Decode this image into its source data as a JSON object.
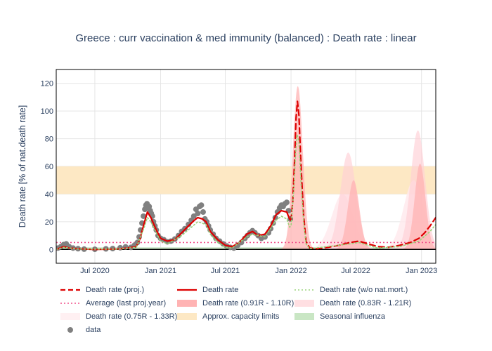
{
  "chart_data": {
    "type": "line",
    "title": "Greece : curr vaccination & med immunity (balanced) : Death rate : linear",
    "ylabel": "Death rate [% of nat.death rate]",
    "xlabel": "",
    "x_ticks": [
      "Jul 2020",
      "Jan 2021",
      "Jul 2021",
      "Jan 2022",
      "Jul 2022",
      "Jan 2023"
    ],
    "x_range": [
      "2020-03-15",
      "2023-02-10"
    ],
    "y_ticks": [
      0,
      20,
      40,
      60,
      80,
      100,
      120
    ],
    "ylim": [
      -10,
      130
    ],
    "grid": true,
    "legend_position": "bottom",
    "shaded_bands": [
      {
        "name": "Approx. capacity limits",
        "y0": 40,
        "y1": 60,
        "color": "#fde8c4"
      },
      {
        "name": "Seasonal influenza",
        "y0": 0,
        "y1": 1.5,
        "color": "#c9e6c4"
      }
    ],
    "average_line": {
      "name": "Average (last proj.year)",
      "y": 5,
      "color": "#f0508a"
    },
    "series": [
      {
        "name": "Death rate",
        "color": "#dd0000",
        "style": "solid",
        "points": [
          [
            "2020-03-15",
            0
          ],
          [
            "2020-04-05",
            2
          ],
          [
            "2020-04-20",
            1
          ],
          [
            "2020-05-15",
            0.5
          ],
          [
            "2020-07-01",
            0
          ],
          [
            "2020-09-01",
            0.3
          ],
          [
            "2020-10-01",
            1
          ],
          [
            "2020-10-25",
            2
          ],
          [
            "2020-11-05",
            8
          ],
          [
            "2020-11-15",
            18
          ],
          [
            "2020-11-25",
            27
          ],
          [
            "2020-12-05",
            23
          ],
          [
            "2020-12-20",
            14
          ],
          [
            "2021-01-01",
            8
          ],
          [
            "2021-01-20",
            6
          ],
          [
            "2021-02-10",
            7
          ],
          [
            "2021-03-01",
            12
          ],
          [
            "2021-03-20",
            17
          ],
          [
            "2021-04-05",
            21
          ],
          [
            "2021-04-15",
            23
          ],
          [
            "2021-04-28",
            22
          ],
          [
            "2021-05-08",
            20
          ],
          [
            "2021-05-20",
            13
          ],
          [
            "2021-06-10",
            7
          ],
          [
            "2021-07-01",
            3
          ],
          [
            "2021-07-20",
            2
          ],
          [
            "2021-08-10",
            5
          ],
          [
            "2021-08-30",
            11
          ],
          [
            "2021-09-15",
            13
          ],
          [
            "2021-10-01",
            10
          ],
          [
            "2021-10-20",
            11
          ],
          [
            "2021-11-05",
            17
          ],
          [
            "2021-11-20",
            25
          ],
          [
            "2021-12-05",
            28
          ],
          [
            "2021-12-20",
            27
          ],
          [
            "2021-12-28",
            22
          ],
          [
            "2022-01-01",
            21
          ]
        ]
      },
      {
        "name": "Death rate (proj.)",
        "color": "#dd0000",
        "style": "dash",
        "points": [
          [
            "2022-01-01",
            21
          ],
          [
            "2022-01-06",
            35
          ],
          [
            "2022-01-11",
            65
          ],
          [
            "2022-01-15",
            95
          ],
          [
            "2022-01-19",
            107
          ],
          [
            "2022-01-23",
            97
          ],
          [
            "2022-01-29",
            60
          ],
          [
            "2022-02-05",
            25
          ],
          [
            "2022-02-12",
            6
          ],
          [
            "2022-02-22",
            1
          ],
          [
            "2022-03-15",
            0.5
          ],
          [
            "2022-04-15",
            1.5
          ],
          [
            "2022-05-15",
            3
          ],
          [
            "2022-06-15",
            5
          ],
          [
            "2022-07-10",
            6
          ],
          [
            "2022-08-05",
            4
          ],
          [
            "2022-09-01",
            2
          ],
          [
            "2022-10-01",
            1.5
          ],
          [
            "2022-11-01",
            3
          ],
          [
            "2022-12-01",
            5
          ],
          [
            "2022-12-25",
            8
          ],
          [
            "2023-01-10",
            12
          ],
          [
            "2023-01-25",
            17
          ],
          [
            "2023-02-10",
            23
          ]
        ]
      },
      {
        "name": "Death rate (w/o nat.mort.)",
        "color": "#9ad37a",
        "style": "dot",
        "points": [
          [
            "2020-03-15",
            0
          ],
          [
            "2020-04-05",
            1.5
          ],
          [
            "2020-05-15",
            0.3
          ],
          [
            "2020-09-01",
            0.2
          ],
          [
            "2020-10-25",
            1.5
          ],
          [
            "2020-11-15",
            15
          ],
          [
            "2020-11-25",
            23
          ],
          [
            "2020-12-05",
            20
          ],
          [
            "2020-12-20",
            12
          ],
          [
            "2021-01-01",
            6
          ],
          [
            "2021-01-20",
            4
          ],
          [
            "2021-03-01",
            10
          ],
          [
            "2021-04-15",
            20
          ],
          [
            "2021-05-08",
            18
          ],
          [
            "2021-05-20",
            11
          ],
          [
            "2021-06-10",
            5
          ],
          [
            "2021-07-01",
            1.5
          ],
          [
            "2021-07-20",
            1
          ],
          [
            "2021-08-30",
            9
          ],
          [
            "2021-09-15",
            11
          ],
          [
            "2021-10-20",
            9
          ],
          [
            "2021-11-20",
            21
          ],
          [
            "2021-12-05",
            24
          ],
          [
            "2021-12-20",
            22
          ],
          [
            "2021-12-28",
            16
          ],
          [
            "2022-01-01",
            17
          ],
          [
            "2022-01-08",
            40
          ],
          [
            "2022-01-14",
            70
          ],
          [
            "2022-01-18",
            83
          ],
          [
            "2022-01-23",
            78
          ],
          [
            "2022-01-29",
            48
          ],
          [
            "2022-02-05",
            20
          ],
          [
            "2022-02-12",
            4
          ],
          [
            "2022-02-22",
            0.5
          ],
          [
            "2022-06-15",
            4
          ],
          [
            "2022-07-10",
            5
          ],
          [
            "2022-08-05",
            3
          ],
          [
            "2022-09-01",
            1
          ],
          [
            "2022-11-01",
            2
          ],
          [
            "2022-12-25",
            6
          ],
          [
            "2023-01-25",
            13
          ],
          [
            "2023-02-10",
            18
          ]
        ]
      }
    ],
    "uncertainty_bands": [
      {
        "name": "Death rate (0.91R - 1.10R)",
        "color": "#ffb3b3",
        "opacity": 0.75,
        "waves": [
          [
            "2022-01-20",
            118,
            14
          ],
          [
            "2022-06-25",
            50,
            16
          ],
          [
            "2022-12-28",
            62,
            15
          ]
        ]
      },
      {
        "name": "Death rate (0.83R - 1.21R)",
        "color": "#ffcfd5",
        "opacity": 0.65,
        "waves": [
          [
            "2022-06-10",
            70,
            22
          ],
          [
            "2022-12-22",
            86,
            20
          ]
        ]
      },
      {
        "name": "Death rate (0.75R - 1.33R)",
        "color": "#ffe9ec",
        "opacity": 0.8,
        "waves": [
          [
            "2022-05-25",
            40,
            30
          ],
          [
            "2022-12-10",
            50,
            28
          ]
        ]
      }
    ],
    "scatter": {
      "name": "data",
      "color": "#808080",
      "points": [
        [
          "2020-03-20",
          1
        ],
        [
          "2020-03-28",
          2
        ],
        [
          "2020-04-05",
          3.5
        ],
        [
          "2020-04-12",
          4
        ],
        [
          "2020-04-20",
          2
        ],
        [
          "2020-05-01",
          1
        ],
        [
          "2020-05-15",
          0.5
        ],
        [
          "2020-06-01",
          0.2
        ],
        [
          "2020-07-01",
          0.1
        ],
        [
          "2020-08-01",
          0.4
        ],
        [
          "2020-08-20",
          0.6
        ],
        [
          "2020-09-10",
          1.2
        ],
        [
          "2020-09-25",
          1.8
        ],
        [
          "2020-10-10",
          1.5
        ],
        [
          "2020-10-20",
          3
        ],
        [
          "2020-10-28",
          5
        ],
        [
          "2020-11-02",
          9
        ],
        [
          "2020-11-06",
          14
        ],
        [
          "2020-11-10",
          19
        ],
        [
          "2020-11-14",
          24
        ],
        [
          "2020-11-18",
          29
        ],
        [
          "2020-11-21",
          32
        ],
        [
          "2020-11-24",
          33
        ],
        [
          "2020-11-27",
          30
        ],
        [
          "2020-11-30",
          31
        ],
        [
          "2020-12-03",
          28
        ],
        [
          "2020-12-06",
          26
        ],
        [
          "2020-12-09",
          24
        ],
        [
          "2020-12-12",
          20
        ],
        [
          "2020-12-16",
          17
        ],
        [
          "2020-12-20",
          14
        ],
        [
          "2020-12-25",
          10
        ],
        [
          "2021-01-01",
          8
        ],
        [
          "2021-01-10",
          7
        ],
        [
          "2021-01-20",
          5.5
        ],
        [
          "2021-01-30",
          6
        ],
        [
          "2021-02-10",
          7.5
        ],
        [
          "2021-02-20",
          10
        ],
        [
          "2021-03-01",
          13
        ],
        [
          "2021-03-10",
          15
        ],
        [
          "2021-03-20",
          18
        ],
        [
          "2021-03-28",
          21
        ],
        [
          "2021-04-04",
          24
        ],
        [
          "2021-04-10",
          29
        ],
        [
          "2021-04-15",
          26
        ],
        [
          "2021-04-20",
          31
        ],
        [
          "2021-04-25",
          32
        ],
        [
          "2021-04-30",
          27
        ],
        [
          "2021-05-05",
          22
        ],
        [
          "2021-05-10",
          20
        ],
        [
          "2021-05-15",
          17
        ],
        [
          "2021-05-20",
          14
        ],
        [
          "2021-05-28",
          11
        ],
        [
          "2021-06-05",
          8
        ],
        [
          "2021-06-15",
          6
        ],
        [
          "2021-06-25",
          4
        ],
        [
          "2021-07-05",
          2.5
        ],
        [
          "2021-07-15",
          1.5
        ],
        [
          "2021-07-25",
          1
        ],
        [
          "2021-08-05",
          3
        ],
        [
          "2021-08-15",
          5
        ],
        [
          "2021-08-25",
          8
        ],
        [
          "2021-09-01",
          10
        ],
        [
          "2021-09-08",
          12
        ],
        [
          "2021-09-15",
          13.5
        ],
        [
          "2021-09-22",
          12
        ],
        [
          "2021-10-01",
          10
        ],
        [
          "2021-10-10",
          8
        ],
        [
          "2021-10-20",
          9
        ],
        [
          "2021-10-30",
          12
        ],
        [
          "2021-11-05",
          15
        ],
        [
          "2021-11-12",
          19
        ],
        [
          "2021-11-18",
          23
        ],
        [
          "2021-11-24",
          27
        ],
        [
          "2021-11-30",
          30
        ],
        [
          "2021-12-05",
          32
        ],
        [
          "2021-12-10",
          31
        ],
        [
          "2021-12-15",
          33
        ],
        [
          "2021-12-20",
          34
        ],
        [
          "2021-12-25",
          28
        ],
        [
          "2021-12-30",
          22
        ]
      ]
    }
  },
  "legend": [
    {
      "label": "Death rate (proj.)",
      "kind": "dash",
      "color": "#dd0000"
    },
    {
      "label": "Death rate",
      "kind": "solid",
      "color": "#dd0000"
    },
    {
      "label": "Death rate (w/o nat.mort.)",
      "kind": "dot",
      "color": "#9ad37a"
    },
    {
      "label": "Average (last proj.year)",
      "kind": "dotpink",
      "color": "#f0508a"
    },
    {
      "label": "Death rate (0.91R - 1.10R)",
      "kind": "fill",
      "color": "#ffb3b3"
    },
    {
      "label": "Death rate (0.83R - 1.21R)",
      "kind": "fill",
      "color": "#ffdfe2"
    },
    {
      "label": "Death rate (0.75R - 1.33R)",
      "kind": "fill",
      "color": "#fff0f2"
    },
    {
      "label": "Approx. capacity limits",
      "kind": "fill",
      "color": "#fde8c4"
    },
    {
      "label": "Seasonal influenza",
      "kind": "fill",
      "color": "#c9e6c4"
    },
    {
      "label": "data",
      "kind": "marker",
      "color": "#808080"
    }
  ]
}
